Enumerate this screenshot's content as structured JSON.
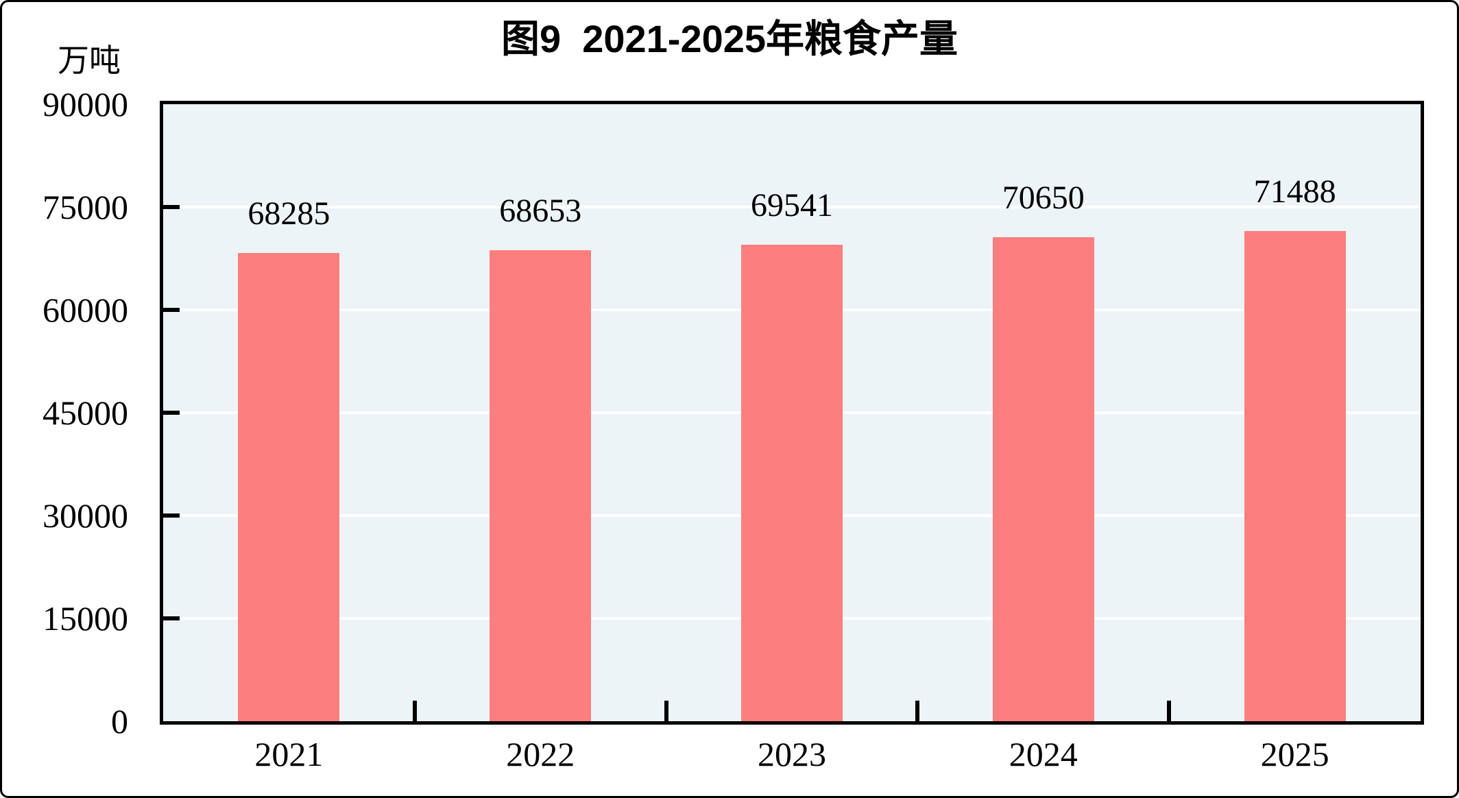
{
  "figure": {
    "title": "图9  2021-2025年粮食产量",
    "unit_label": "万吨"
  },
  "chart_data": {
    "type": "bar",
    "title": "图9  2021-2025年粮食产量",
    "unit": "万吨",
    "categories": [
      "2021",
      "2022",
      "2023",
      "2024",
      "2025"
    ],
    "values": [
      68285,
      68653,
      69541,
      70650,
      71488
    ],
    "series_name": "粮食产量",
    "xlabel": "",
    "ylabel": "万吨",
    "ylim": [
      0,
      90000
    ],
    "yticks": [
      0,
      15000,
      30000,
      45000,
      60000,
      75000,
      90000
    ],
    "grid": true,
    "legend_position": "none",
    "bar_labels_shown": true,
    "colors": {
      "bar": "#FC7E7E",
      "plot_background": "#EDF4F7",
      "gridline": "#FFFFFF",
      "axis": "#000000",
      "text": "#000000"
    }
  }
}
